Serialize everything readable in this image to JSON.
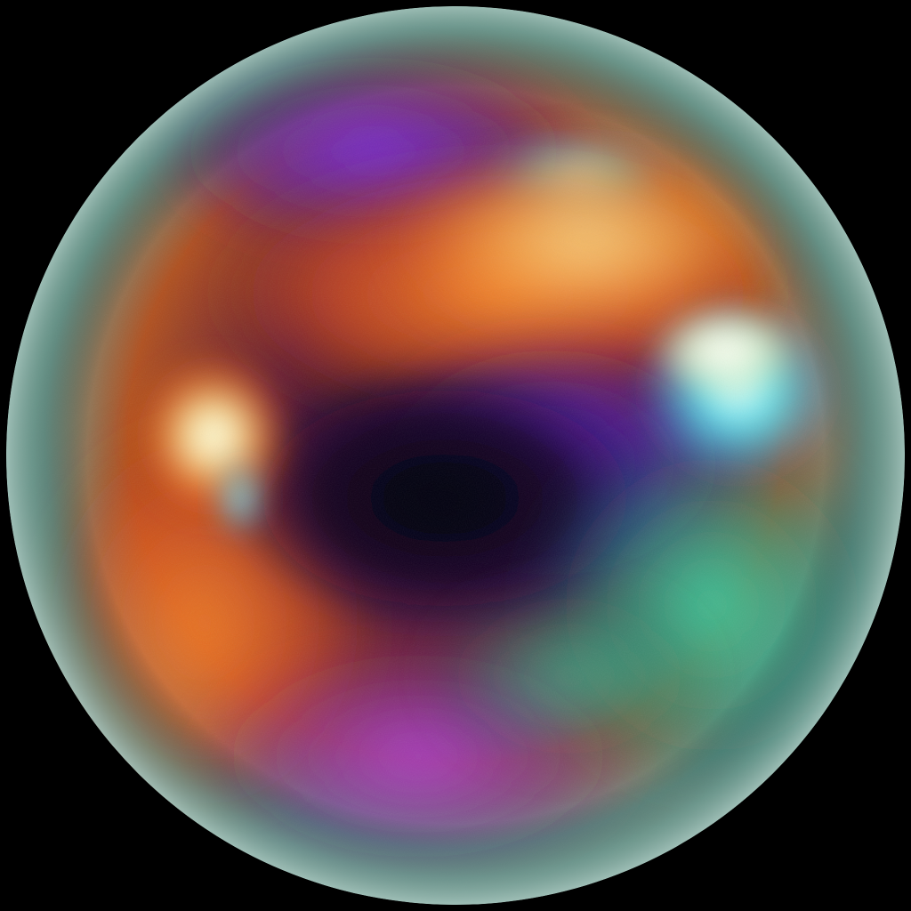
{
  "scene": {
    "background_color": "#000000",
    "subject": "iridescent-sphere",
    "palette": {
      "rim_teal": "#7fa8a0",
      "orange": "#ff7a1a",
      "yellow": "#ffe27a",
      "purple": "#6a2bd6",
      "violet": "#9b3cff",
      "cyan": "#3ff0ff",
      "green_teal": "#2fd6a8",
      "dark_core": "#050208",
      "highlight": "#ffffff"
    }
  }
}
